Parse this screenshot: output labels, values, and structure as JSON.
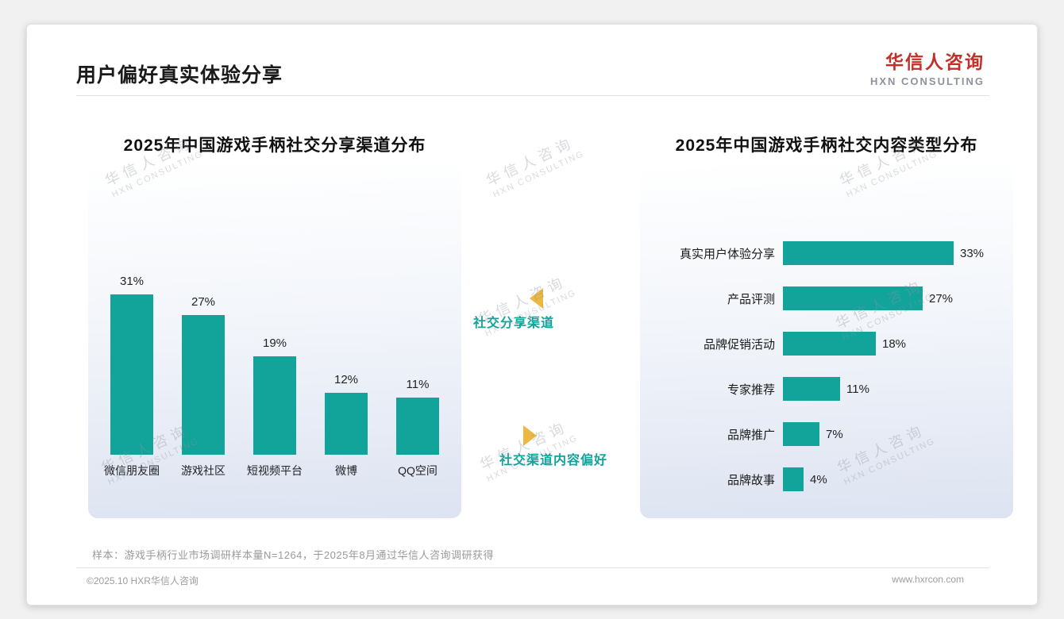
{
  "page": {
    "title": "用户偏好真实体验分享",
    "logo": {
      "cn": "华信人咨询",
      "en": "HXN CONSULTING"
    },
    "watermark": {
      "cn": "华信人咨询",
      "en": "HXN CONSULTING"
    },
    "note": "样本：游戏手柄行业市场调研样本量N=1264，于2025年8月通过华信人咨询调研获得",
    "footer_left": "©2025.10 HXR华信人咨询",
    "footer_right": "www.hxrcon.com"
  },
  "annotations": {
    "left_chart_label": "社交分享渠道",
    "right_chart_label": "社交渠道内容偏好"
  },
  "colors": {
    "accent_teal": "#12A39B",
    "brand_red": "#C13029",
    "arrow_gold": "#EDB83F"
  },
  "chart_data": [
    {
      "type": "bar",
      "orientation": "vertical",
      "title": "2025年中国游戏手柄社交分享渠道分布",
      "categories": [
        "微信朋友圈",
        "游戏社区",
        "短视频平台",
        "微博",
        "QQ空间"
      ],
      "values": [
        31,
        27,
        19,
        12,
        11
      ],
      "unit": "%",
      "value_labels": [
        "31%",
        "27%",
        "19%",
        "12%",
        "11%"
      ],
      "ylim": [
        0,
        35
      ],
      "grid": false,
      "legend": false
    },
    {
      "type": "bar",
      "orientation": "horizontal",
      "title": "2025年中国游戏手柄社交内容类型分布",
      "categories": [
        "真实用户体验分享",
        "产品评测",
        "品牌促销活动",
        "专家推荐",
        "品牌推广",
        "品牌故事"
      ],
      "values": [
        33,
        27,
        18,
        11,
        7,
        4
      ],
      "unit": "%",
      "value_labels": [
        "33%",
        "27%",
        "18%",
        "11%",
        "7%",
        "4%"
      ],
      "xlim": [
        0,
        35
      ],
      "grid": false,
      "legend": false
    }
  ]
}
